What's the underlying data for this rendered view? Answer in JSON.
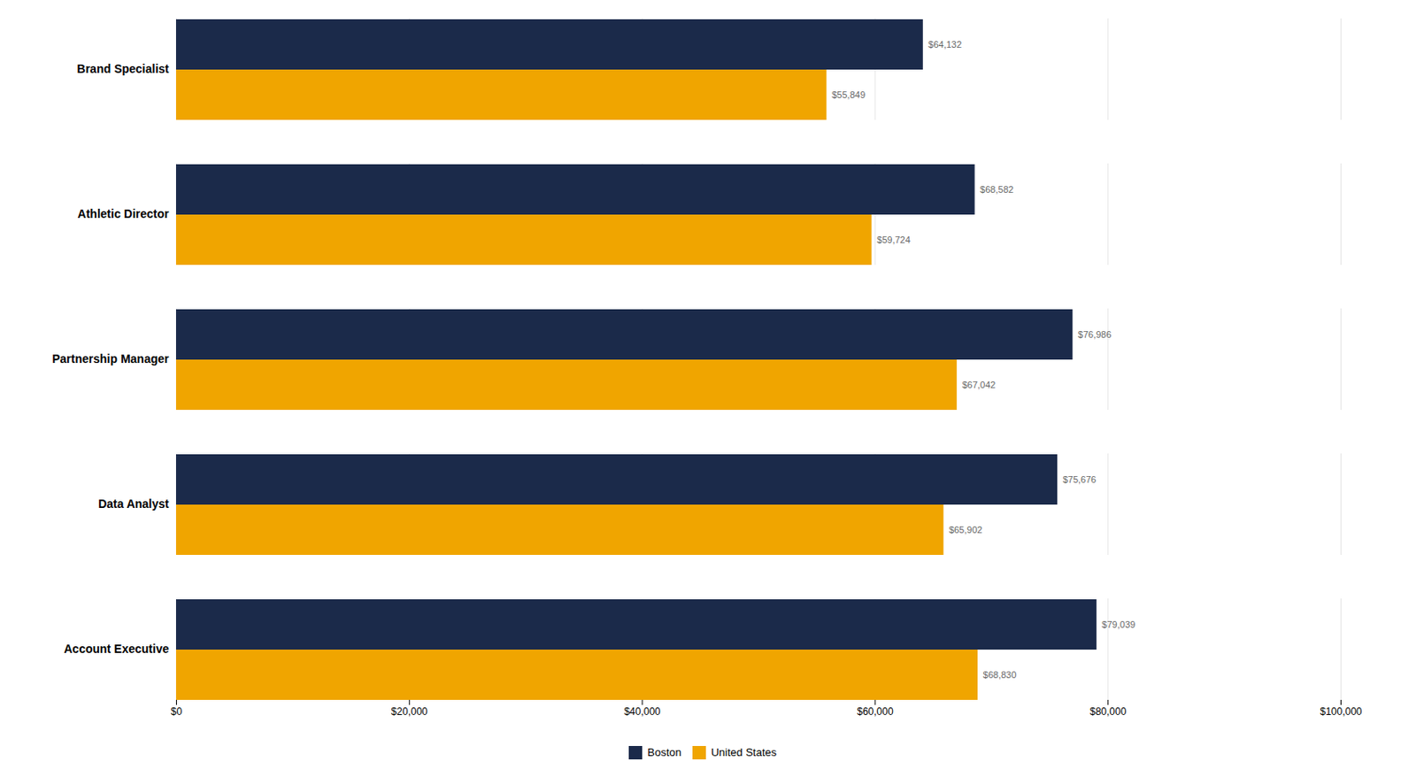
{
  "chart_data": {
    "type": "bar",
    "orientation": "horizontal",
    "categories": [
      "Account Executive",
      "Data Analyst",
      "Partnership Manager",
      "Athletic Director",
      "Brand Specialist"
    ],
    "series": [
      {
        "name": "Boston",
        "color": "#1B2A4A",
        "values": [
          79039,
          75676,
          76986,
          68582,
          64132
        ],
        "value_labels": [
          "$79,039",
          "$75,676",
          "$76,986",
          "$68,582",
          "$64,132"
        ]
      },
      {
        "name": "United States",
        "color": "#F0A500",
        "values": [
          68830,
          65902,
          67042,
          59724,
          55849
        ],
        "value_labels": [
          "$68,830",
          "$65,902",
          "$67,042",
          "$59,724",
          "$55,849"
        ]
      }
    ],
    "xlim": [
      0,
      100000
    ],
    "xticks": [
      {
        "value": 0,
        "label": "$0"
      },
      {
        "value": 20000,
        "label": "$20,000"
      },
      {
        "value": 40000,
        "label": "$40,000"
      },
      {
        "value": 60000,
        "label": "$60,000"
      },
      {
        "value": 80000,
        "label": "$80,000"
      },
      {
        "value": 100000,
        "label": "$100,000"
      }
    ],
    "grid": true,
    "data_labels": true,
    "legend": "bottom"
  }
}
